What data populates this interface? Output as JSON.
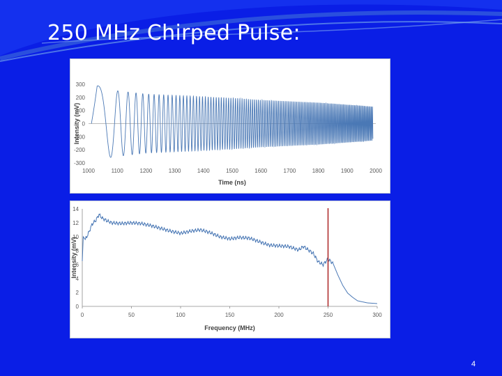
{
  "slide": {
    "title": "250 MHz Chirped Pulse:",
    "page_number": "4",
    "background_color": "#0a1ee6",
    "accent_color": "#4f7bd8"
  },
  "chart_data": [
    {
      "type": "line",
      "title": "",
      "xlabel": "Time (ns)",
      "ylabel": "Intensity (mV)",
      "xlim": [
        1000,
        2000
      ],
      "ylim": [
        -300,
        300
      ],
      "x_ticks": [
        1000,
        1100,
        1200,
        1300,
        1400,
        1500,
        1600,
        1700,
        1800,
        1900,
        2000
      ],
      "y_ticks": [
        300,
        200,
        100,
        0,
        -100,
        -200,
        -300
      ],
      "x_tick_labels": [
        "1000",
        "1100",
        "1200",
        "1300",
        "1400",
        "1500",
        "1600",
        "1700",
        "1800",
        "1900",
        "2000"
      ],
      "y_tick_labels": [
        "300",
        "200",
        "100",
        "0",
        "-100",
        "-200",
        "-300"
      ],
      "grid": false,
      "line_color": "#4a78b5",
      "series": [
        {
          "name": "",
          "waveform": "linear chirp",
          "start_frequency_MHz": 0,
          "end_frequency_MHz": 250,
          "x_start": 1010,
          "x_end": 1990,
          "amplitude_start": 290,
          "amplitude_end": 130,
          "x": [
            1010,
            1030,
            1070,
            1100,
            1200,
            1300,
            1400,
            1500,
            1600,
            1700,
            1800,
            1900,
            1990
          ],
          "y": [
            0,
            290,
            260,
            250,
            225,
            215,
            205,
            195,
            180,
            170,
            160,
            145,
            130
          ]
        }
      ]
    },
    {
      "type": "line",
      "title": "",
      "xlabel": "Frequency (MHz)",
      "ylabel": "Intensity (mV)",
      "xlim": [
        0,
        300
      ],
      "ylim": [
        0,
        14
      ],
      "x_ticks": [
        0,
        50,
        100,
        150,
        200,
        250,
        300
      ],
      "y_ticks": [
        14,
        12,
        10,
        8,
        6,
        4,
        2,
        0
      ],
      "x_tick_labels": [
        "0",
        "50",
        "100",
        "150",
        "200",
        "250",
        "300"
      ],
      "y_tick_labels": [
        "14",
        "12",
        "10",
        "8",
        "6",
        "4",
        "2",
        "0"
      ],
      "grid": false,
      "line_color": "#4a78b5",
      "marker_line": {
        "x": 250,
        "color": "#b03030"
      },
      "series": [
        {
          "name": "",
          "x": [
            0,
            1,
            3,
            6,
            10,
            14,
            17,
            20,
            25,
            30,
            40,
            50,
            60,
            70,
            80,
            90,
            100,
            110,
            120,
            130,
            140,
            150,
            160,
            170,
            180,
            190,
            200,
            210,
            220,
            225,
            230,
            235,
            240,
            245,
            250,
            255,
            260,
            265,
            270,
            275,
            280,
            290,
            300
          ],
          "y": [
            6.5,
            10,
            9.6,
            10.4,
            11.8,
            12.4,
            13.2,
            12.7,
            12.3,
            12.0,
            11.9,
            12.0,
            11.9,
            11.6,
            11.2,
            10.8,
            10.5,
            10.8,
            11.0,
            10.6,
            10.0,
            9.7,
            9.9,
            9.8,
            9.3,
            8.8,
            8.7,
            8.6,
            8.1,
            8.6,
            8.1,
            7.6,
            6.4,
            6.0,
            6.8,
            6.2,
            4.5,
            3.0,
            1.9,
            1.3,
            0.8,
            0.5,
            0.4
          ]
        }
      ]
    }
  ]
}
